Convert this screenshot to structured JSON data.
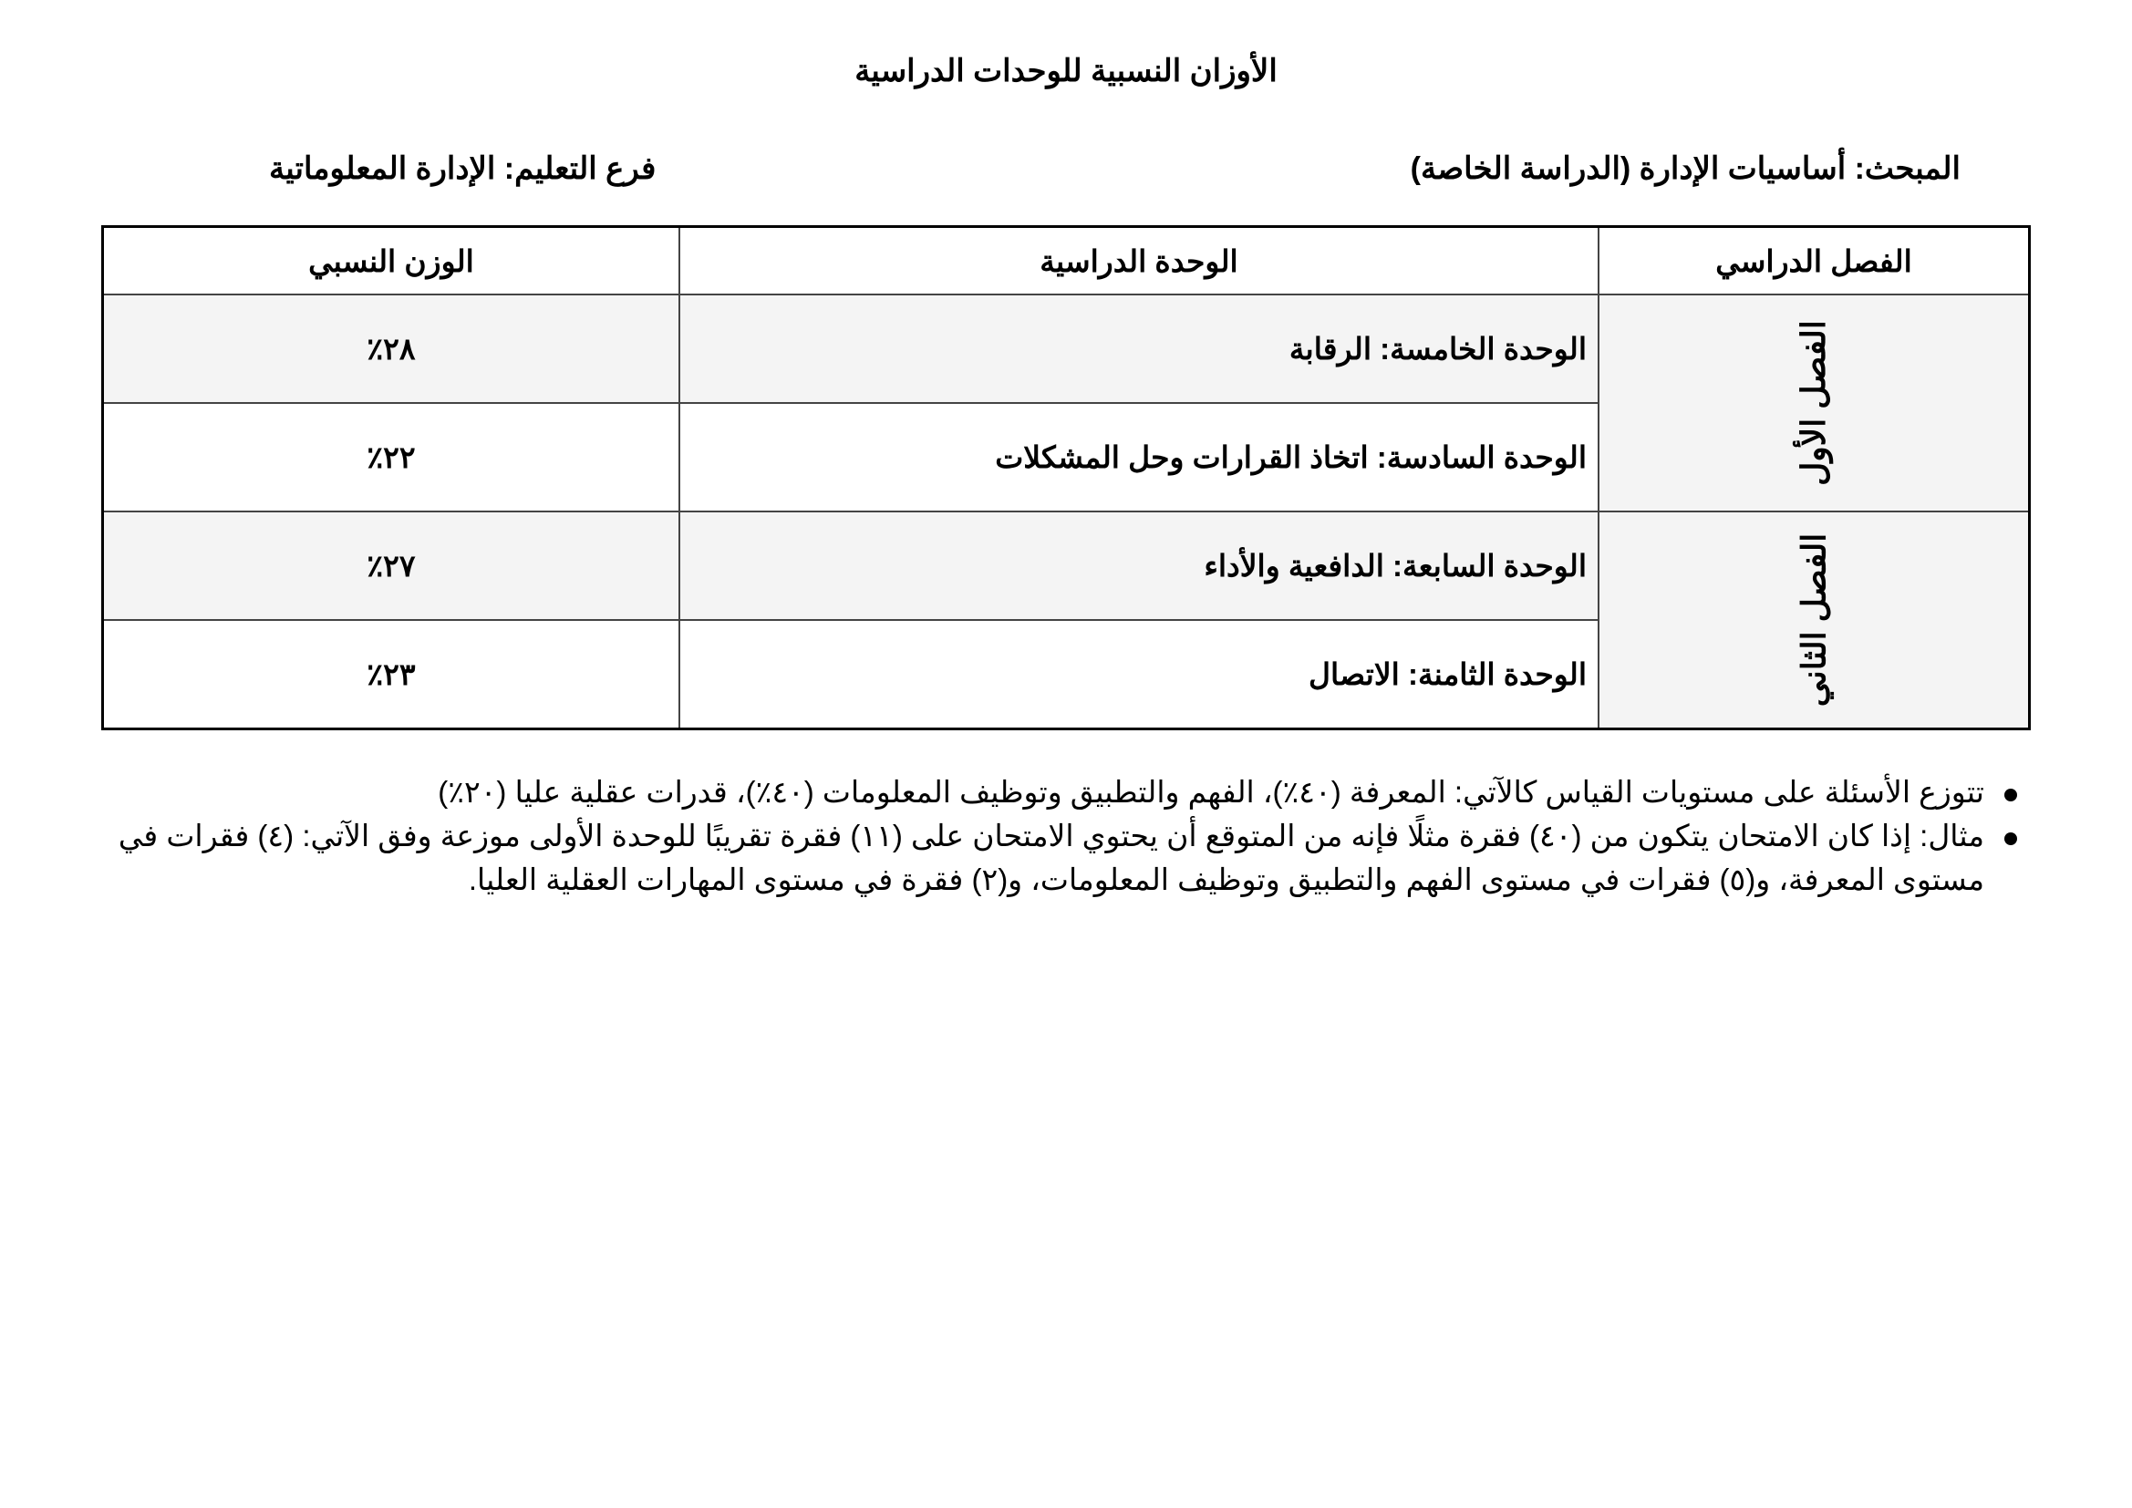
{
  "title": "الأوزان النسبية للوحدات الدراسية",
  "subject": "المبحث: أساسيات الإدارة (الدراسة الخاصة)",
  "branch": "فرع التعليم: الإدارة المعلوماتية",
  "table": {
    "headers": [
      "الفصل الدراسي",
      "الوحدة الدراسية",
      "الوزن النسبي"
    ],
    "semesters": [
      "الفصل الأول",
      "الفصل الثاني"
    ],
    "rows": [
      {
        "unit": "الوحدة الخامسة: الرقابة",
        "weight": "٢٨٪"
      },
      {
        "unit": "الوحدة السادسة: اتخاذ القرارات وحل المشكلات",
        "weight": "٢٢٪"
      },
      {
        "unit": "الوحدة السابعة: الدافعية والأداء",
        "weight": "٢٧٪"
      },
      {
        "unit": "الوحدة الثامنة: الاتصال",
        "weight": "٢٣٪"
      }
    ]
  },
  "notes": [
    "تتوزع الأسئلة على مستويات القياس كالآتي: المعرفة (٤٠٪)، الفهم والتطبيق وتوظيف المعلومات (٤٠٪)، قدرات عقلية عليا (٢٠٪)",
    "مثال: إذا كان الامتحان يتكون من (٤٠) فقرة مثلًا فإنه من المتوقع أن يحتوي الامتحان على (١١) فقرة تقريبًا للوحدة الأولى موزعة وفق الآتي: (٤) فقرات في مستوى المعرفة، و(٥) فقرات في مستوى الفهم والتطبيق وتوظيف المعلومات، و(٢) فقرة في مستوى المهارات العقلية العليا."
  ]
}
